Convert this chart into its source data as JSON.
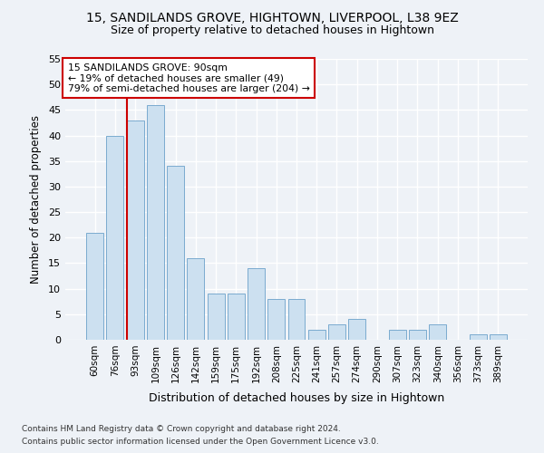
{
  "title1": "15, SANDILANDS GROVE, HIGHTOWN, LIVERPOOL, L38 9EZ",
  "title2": "Size of property relative to detached houses in Hightown",
  "xlabel": "Distribution of detached houses by size in Hightown",
  "ylabel": "Number of detached properties",
  "categories": [
    "60sqm",
    "76sqm",
    "93sqm",
    "109sqm",
    "126sqm",
    "142sqm",
    "159sqm",
    "175sqm",
    "192sqm",
    "208sqm",
    "225sqm",
    "241sqm",
    "257sqm",
    "274sqm",
    "290sqm",
    "307sqm",
    "323sqm",
    "340sqm",
    "356sqm",
    "373sqm",
    "389sqm"
  ],
  "values": [
    21,
    40,
    43,
    46,
    34,
    16,
    9,
    9,
    14,
    8,
    8,
    2,
    3,
    4,
    0,
    2,
    2,
    3,
    0,
    1,
    1
  ],
  "bar_color": "#cce0f0",
  "bar_edge_color": "#7aabcf",
  "vline_color": "#cc0000",
  "annotation_text": "15 SANDILANDS GROVE: 90sqm\n← 19% of detached houses are smaller (49)\n79% of semi-detached houses are larger (204) →",
  "annotation_box_color": "#ffffff",
  "annotation_box_edge": "#cc0000",
  "footnote1": "Contains HM Land Registry data © Crown copyright and database right 2024.",
  "footnote2": "Contains public sector information licensed under the Open Government Licence v3.0.",
  "ylim": [
    0,
    55
  ],
  "yticks": [
    0,
    5,
    10,
    15,
    20,
    25,
    30,
    35,
    40,
    45,
    50,
    55
  ],
  "background_color": "#eef2f7",
  "grid_color": "#ffffff"
}
